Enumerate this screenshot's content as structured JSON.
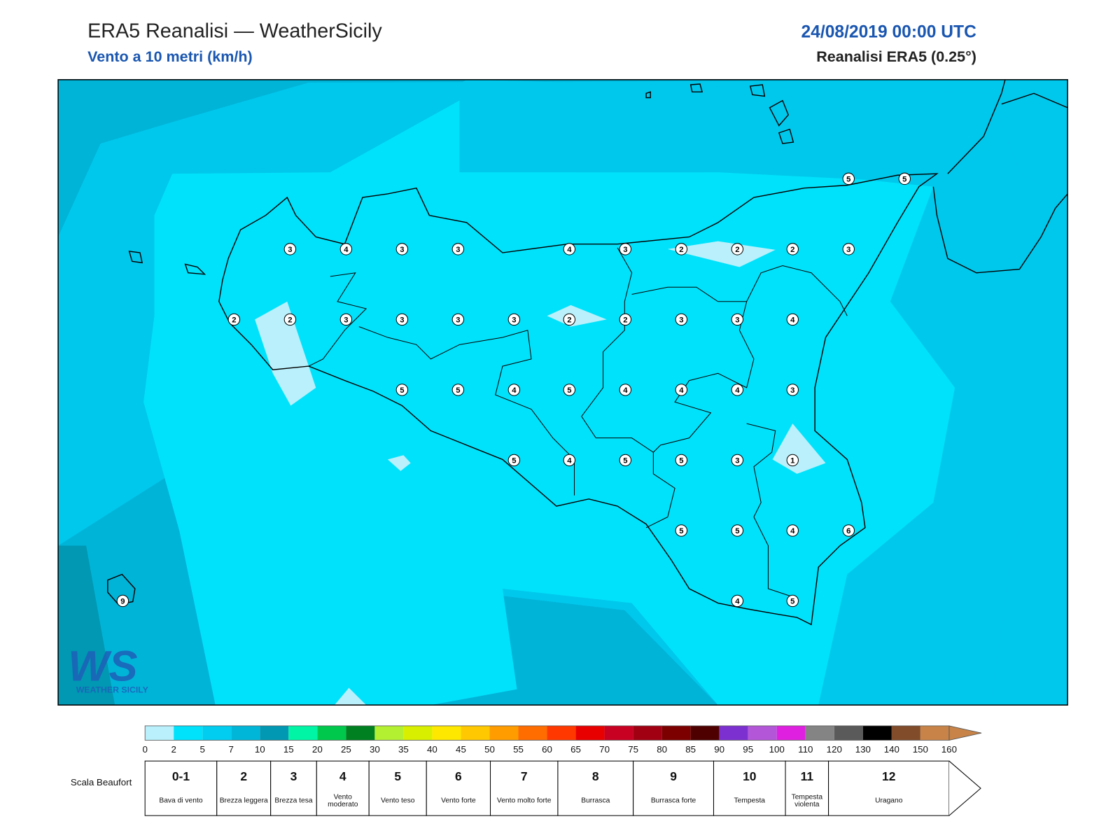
{
  "header": {
    "title": "ERA5 Reanalisi — WeatherSicily",
    "subtitle": "Vento a 10 metri (km/h)",
    "datetime": "24/08/2019 00:00 UTC",
    "source": "Reanalisi ERA5 (0.25°)"
  },
  "stations": {
    "values": [
      5,
      5,
      3,
      4,
      3,
      3,
      4,
      3,
      2,
      2,
      2,
      3,
      2,
      2,
      3,
      3,
      3,
      3,
      2,
      2,
      3,
      3,
      4,
      5,
      5,
      4,
      5,
      4,
      4,
      4,
      3,
      5,
      4,
      5,
      5,
      3,
      1,
      5,
      5,
      4,
      6,
      4,
      5,
      9
    ]
  },
  "colorbar": {
    "ticks": [
      0,
      2,
      5,
      7,
      10,
      15,
      20,
      25,
      30,
      35,
      40,
      45,
      50,
      55,
      60,
      65,
      70,
      75,
      80,
      85,
      90,
      95,
      100,
      110,
      120,
      130,
      140,
      150,
      160
    ],
    "colors": [
      "#b9f0fb",
      "#00e2fb",
      "#00cdef",
      "#00b6d8",
      "#0098b3",
      "#00f5a5",
      "#00c84c",
      "#008020",
      "#b4f032",
      "#d8f000",
      "#ffe800",
      "#ffc800",
      "#ff9c00",
      "#ff6c00",
      "#ff3800",
      "#e80000",
      "#c80022",
      "#a00012",
      "#7c0000",
      "#4e0000",
      "#7c30d0",
      "#b456d8",
      "#e020e0",
      "#848484",
      "#5a5a5a",
      "#000000",
      "#804c2a",
      "#c88448"
    ]
  },
  "beaufort": {
    "title": "Scala Beaufort",
    "levels": [
      {
        "force": "0-1",
        "label": "Bava di vento"
      },
      {
        "force": "2",
        "label": "Brezza leggera"
      },
      {
        "force": "3",
        "label": "Brezza tesa"
      },
      {
        "force": "4",
        "label": "Vento moderato"
      },
      {
        "force": "5",
        "label": "Vento teso"
      },
      {
        "force": "6",
        "label": "Vento forte"
      },
      {
        "force": "7",
        "label": "Vento molto forte"
      },
      {
        "force": "8",
        "label": "Burrasca"
      },
      {
        "force": "9",
        "label": "Burrasca forte"
      },
      {
        "force": "10",
        "label": "Tempesta"
      },
      {
        "force": "11",
        "label": "Tempesta violenta"
      },
      {
        "force": "12",
        "label": "Uragano"
      }
    ]
  },
  "logo": {
    "mark": "WS",
    "text": "WEATHER SICILY"
  }
}
